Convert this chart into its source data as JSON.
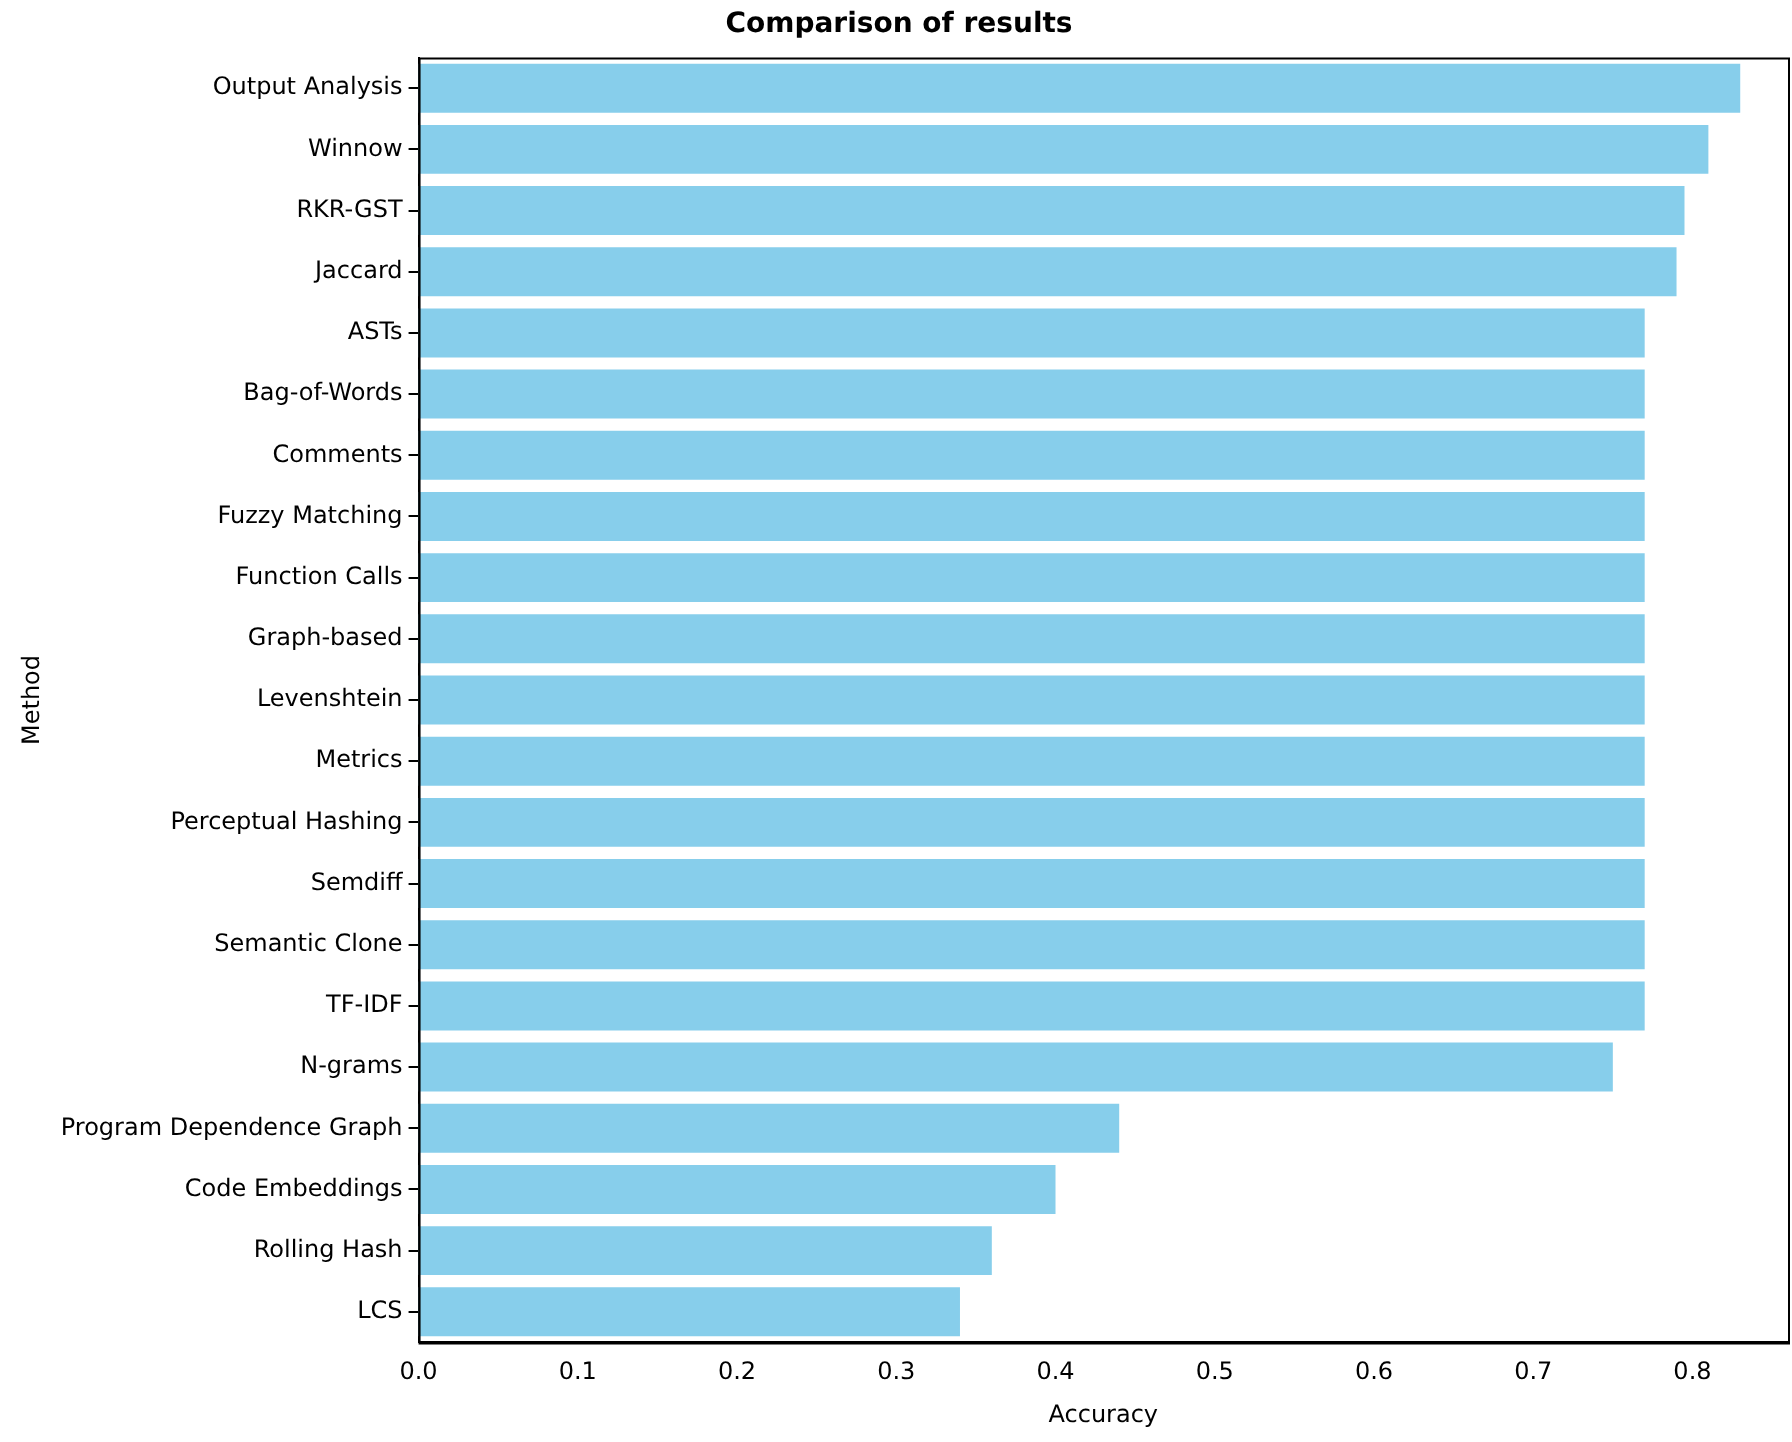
{
  "chart_data": {
    "type": "bar",
    "orientation": "horizontal",
    "title": "Comparison of results",
    "xlabel": "Accuracy",
    "ylabel": "Method",
    "categories": [
      "Output Analysis",
      "Winnow",
      "RKR-GST",
      "Jaccard",
      "ASTs",
      "Bag-of-Words",
      "Comments",
      "Fuzzy Matching",
      "Function Calls",
      "Graph-based",
      "Levenshtein",
      "Metrics",
      "Perceptual Hashing",
      "Semdiff",
      "Semantic Clone",
      "TF-IDF",
      "N-grams",
      "Program Dependence Graph",
      "Code Embeddings",
      "Rolling Hash",
      "LCS"
    ],
    "values": [
      0.83,
      0.81,
      0.795,
      0.79,
      0.77,
      0.77,
      0.77,
      0.77,
      0.77,
      0.77,
      0.77,
      0.77,
      0.77,
      0.77,
      0.77,
      0.77,
      0.75,
      0.44,
      0.4,
      0.36,
      0.34
    ],
    "color": "#87ceeb",
    "xlim": [
      0,
      0.86
    ],
    "xticks": [
      {
        "value": 0,
        "label": "0.0"
      },
      {
        "value": 0.1,
        "label": "0.1"
      },
      {
        "value": 0.2,
        "label": "0.2"
      },
      {
        "value": 0.3,
        "label": "0.3"
      },
      {
        "value": 0.4,
        "label": "0.4"
      },
      {
        "value": 0.5,
        "label": "0.5"
      },
      {
        "value": 0.6,
        "label": "0.6"
      },
      {
        "value": 0.7,
        "label": "0.7"
      },
      {
        "value": 0.8,
        "label": "0.8"
      }
    ],
    "grid": false,
    "legend": false
  }
}
